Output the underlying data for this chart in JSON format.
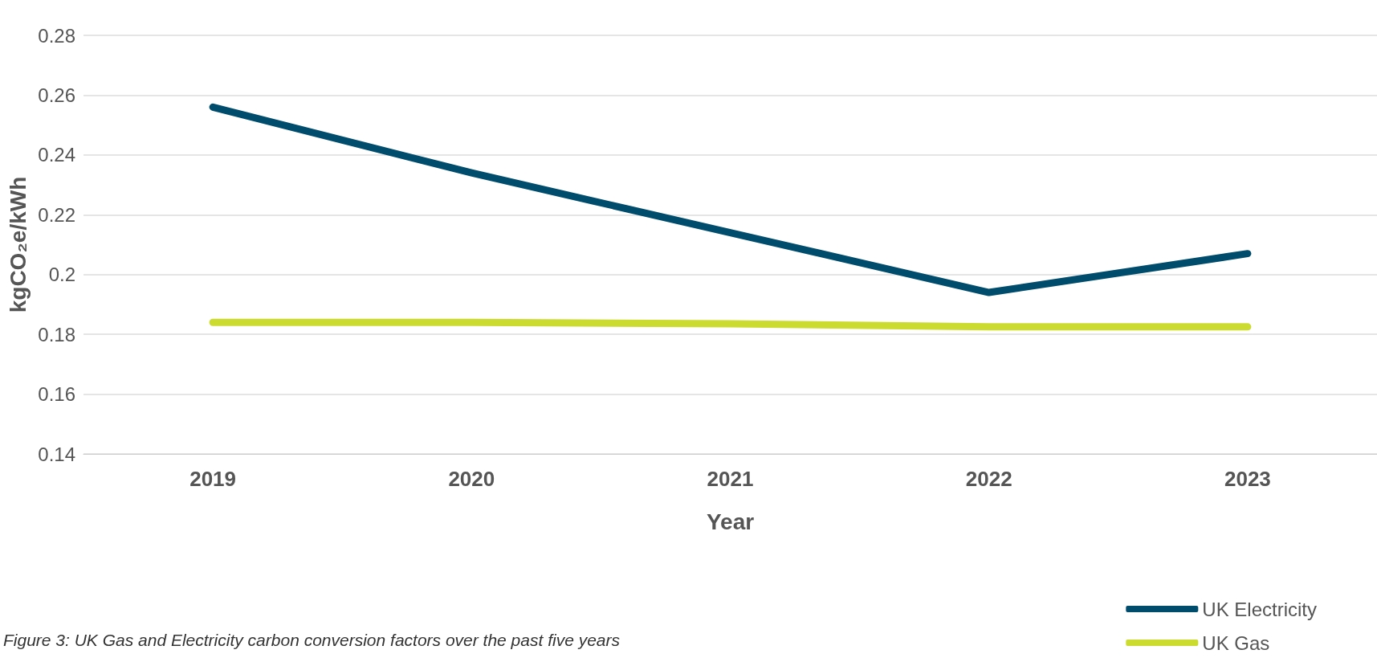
{
  "chart_data": {
    "type": "line",
    "xlabel": "Year",
    "ylabel": "kgCO₂e/kWh",
    "categories": [
      "2019",
      "2020",
      "2021",
      "2022",
      "2023"
    ],
    "series": [
      {
        "name": "UK Electricity",
        "color": "#004c6d",
        "values": [
          0.256,
          0.234,
          0.214,
          0.194,
          0.207
        ]
      },
      {
        "name": "UK Gas",
        "color": "#ccdb2f",
        "values": [
          0.184,
          0.184,
          0.1835,
          0.1825,
          0.1825
        ]
      }
    ],
    "ylim": [
      0.14,
      0.28
    ],
    "yticks": [
      0.14,
      0.16,
      0.18,
      0.2,
      0.22,
      0.24,
      0.26,
      0.28
    ],
    "grid": "y",
    "legend": "bottom right",
    "line_style": "solid",
    "annotations": [
      "Figure 3: UK Gas and Electricity carbon conversion factors over the past five years"
    ]
  }
}
